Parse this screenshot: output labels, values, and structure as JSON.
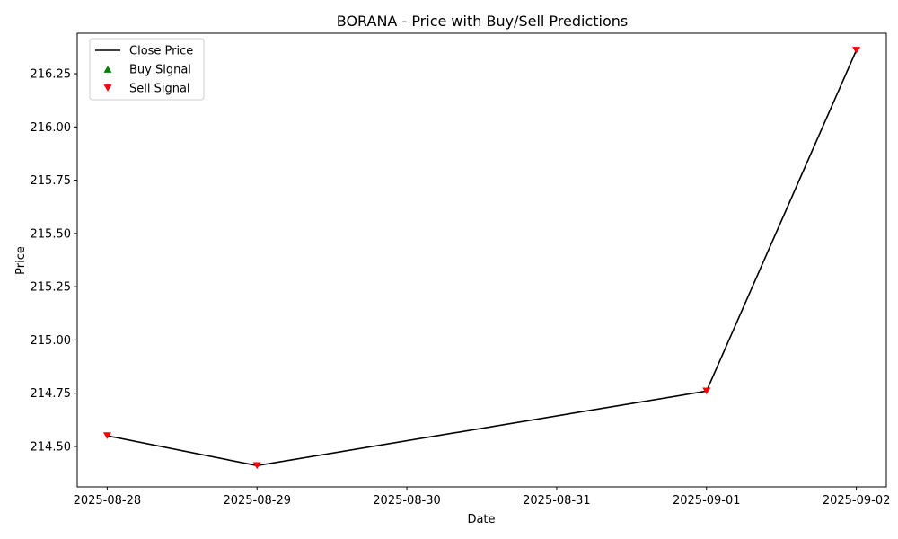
{
  "chart_data": {
    "type": "line",
    "title": "BORANA - Price with Buy/Sell Predictions",
    "xlabel": "Date",
    "ylabel": "Price",
    "x_ticks": [
      "2025-08-28",
      "2025-08-29",
      "2025-08-30",
      "2025-08-31",
      "2025-09-01",
      "2025-09-02"
    ],
    "y_ticks": [
      "214.50",
      "214.75",
      "215.00",
      "215.25",
      "215.50",
      "215.75",
      "216.00",
      "216.25"
    ],
    "xlim": [
      "2025-08-27T19:12",
      "2025-09-02T04:48"
    ],
    "ylim": [
      214.31,
      216.44
    ],
    "grid": false,
    "legend_position": "top-left",
    "series": [
      {
        "name": "Close Price",
        "kind": "line",
        "color": "#000000",
        "x": [
          "2025-08-28",
          "2025-08-29",
          "2025-09-01",
          "2025-09-02"
        ],
        "y": [
          214.55,
          214.41,
          214.76,
          216.36
        ]
      },
      {
        "name": "Buy Signal",
        "kind": "marker-up",
        "color": "#008000",
        "x": [],
        "y": []
      },
      {
        "name": "Sell Signal",
        "kind": "marker-down",
        "color": "#ff0000",
        "x": [
          "2025-08-28",
          "2025-08-29",
          "2025-09-01",
          "2025-09-02"
        ],
        "y": [
          214.55,
          214.41,
          214.76,
          216.36
        ]
      }
    ]
  }
}
